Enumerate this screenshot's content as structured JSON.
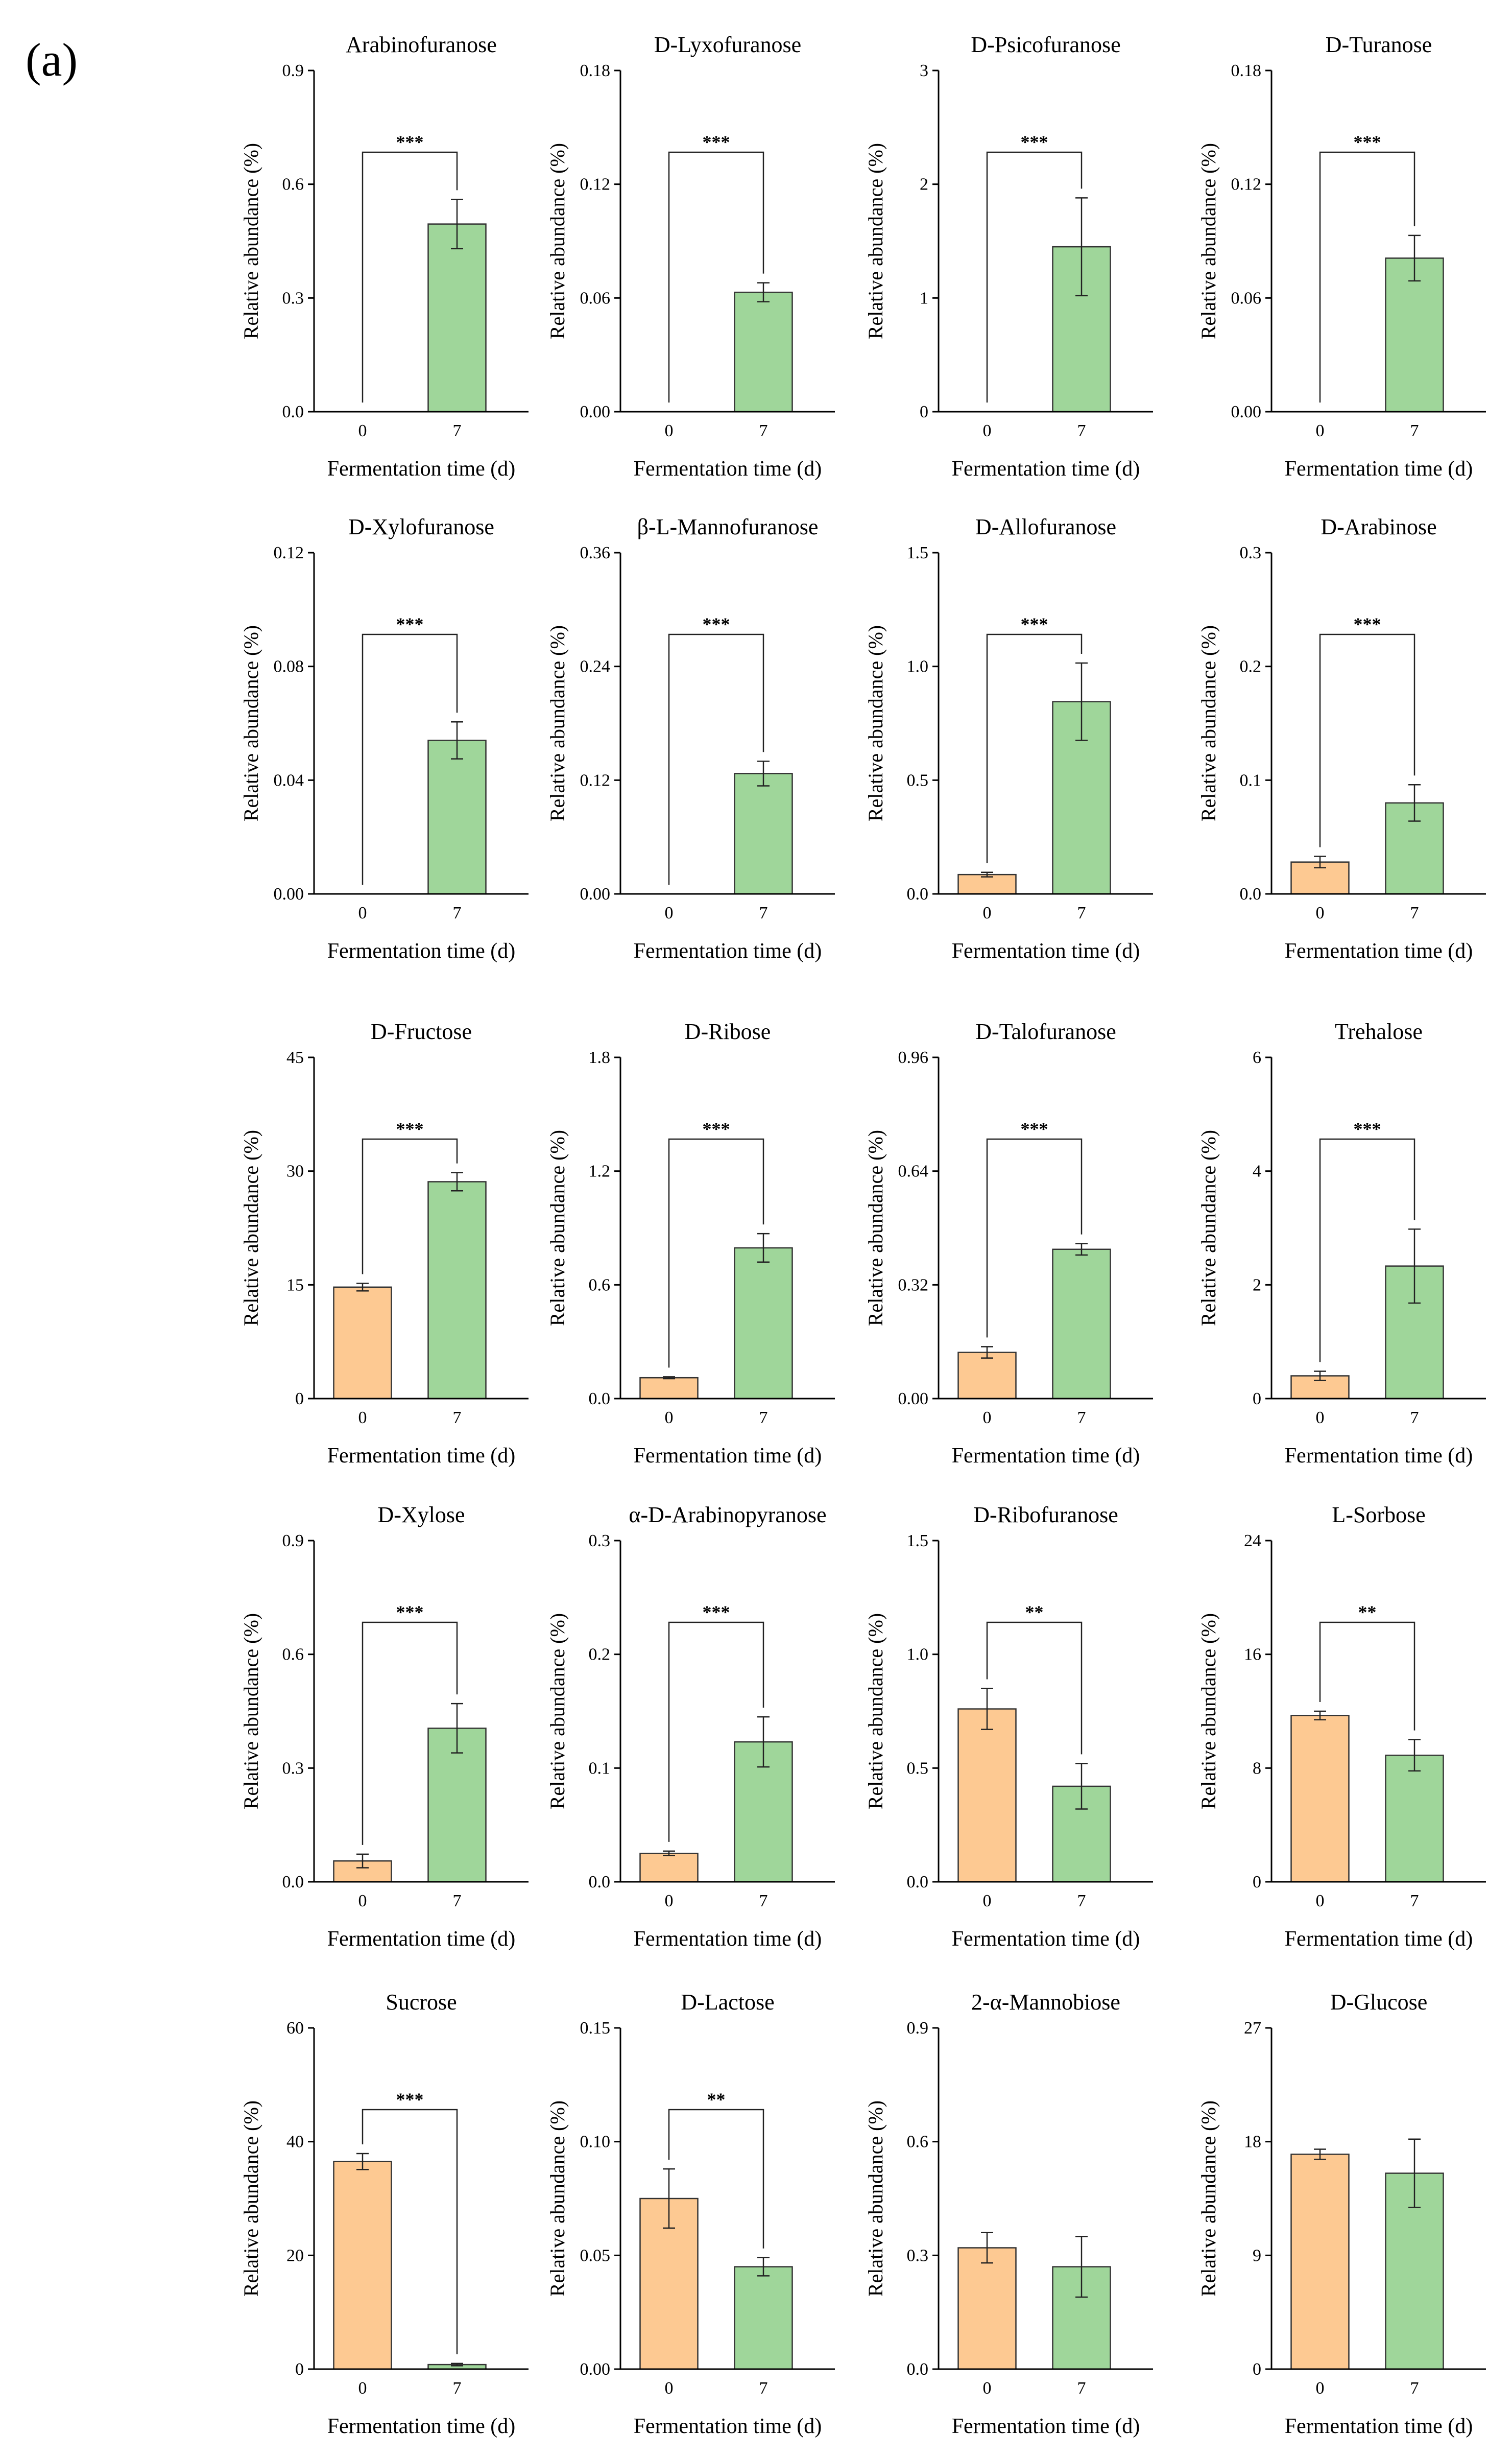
{
  "figure": {
    "panel_label": "(a)",
    "colors": {
      "day0": "#fdc992",
      "day7": "#9fd69a",
      "axis": "#000000"
    }
  },
  "chart_data": [
    {
      "type": "bar",
      "title": "Arabinofuranose",
      "xlabel": "Fermentation time (d)",
      "ylabel": "Relative abundance (%)",
      "categories": [
        "0",
        "7"
      ],
      "values": [
        0,
        0.495
      ],
      "errors": [
        0,
        0.065
      ],
      "ylim": [
        0,
        0.9
      ],
      "yticks": [
        "0.0",
        "0.3",
        "0.6",
        "0.9"
      ],
      "significance": "***"
    },
    {
      "type": "bar",
      "title": "D-Lyxofuranose",
      "xlabel": "Fermentation time (d)",
      "ylabel": "Relative abundance (%)",
      "categories": [
        "0",
        "7"
      ],
      "values": [
        0,
        0.063
      ],
      "errors": [
        0,
        0.005
      ],
      "ylim": [
        0,
        0.18
      ],
      "yticks": [
        "0.00",
        "0.06",
        "0.12",
        "0.18"
      ],
      "significance": "***"
    },
    {
      "type": "bar",
      "title": "D-Psicofuranose",
      "xlabel": "Fermentation time (d)",
      "ylabel": "Relative abundance (%)",
      "categories": [
        "0",
        "7"
      ],
      "values": [
        0,
        1.45
      ],
      "errors": [
        0,
        0.43
      ],
      "ylim": [
        0,
        3
      ],
      "yticks": [
        "0",
        "1",
        "2",
        "3"
      ],
      "significance": "***"
    },
    {
      "type": "bar",
      "title": "D-Turanose",
      "xlabel": "Fermentation time (d)",
      "ylabel": "Relative abundance (%)",
      "categories": [
        "0",
        "7"
      ],
      "values": [
        0,
        0.081
      ],
      "errors": [
        0,
        0.012
      ],
      "ylim": [
        0,
        0.18
      ],
      "yticks": [
        "0.00",
        "0.06",
        "0.12",
        "0.18"
      ],
      "significance": "***"
    },
    {
      "type": "bar",
      "title": "D-Xylofuranose",
      "xlabel": "Fermentation time (d)",
      "ylabel": "Relative abundance (%)",
      "categories": [
        "0",
        "7"
      ],
      "values": [
        0,
        0.054
      ],
      "errors": [
        0,
        0.0065
      ],
      "ylim": [
        0,
        0.12
      ],
      "yticks": [
        "0.00",
        "0.04",
        "0.08",
        "0.12"
      ],
      "significance": "***"
    },
    {
      "type": "bar",
      "title": "β-L-Mannofuranose",
      "xlabel": "Fermentation time (d)",
      "ylabel": "Relative abundance (%)",
      "categories": [
        "0",
        "7"
      ],
      "values": [
        0,
        0.127
      ],
      "errors": [
        0,
        0.013
      ],
      "ylim": [
        0,
        0.36
      ],
      "yticks": [
        "0.00",
        "0.12",
        "0.24",
        "0.36"
      ],
      "significance": "***"
    },
    {
      "type": "bar",
      "title": "D-Allofuranose",
      "xlabel": "Fermentation time (d)",
      "ylabel": "Relative abundance (%)",
      "categories": [
        "0",
        "7"
      ],
      "values": [
        0.085,
        0.845
      ],
      "errors": [
        0.01,
        0.17
      ],
      "ylim": [
        0,
        1.5
      ],
      "yticks": [
        "0.0",
        "0.5",
        "1.0",
        "1.5"
      ],
      "significance": "***"
    },
    {
      "type": "bar",
      "title": "D-Arabinose",
      "xlabel": "Fermentation time (d)",
      "ylabel": "Relative abundance (%)",
      "categories": [
        "0",
        "7"
      ],
      "values": [
        0.028,
        0.08
      ],
      "errors": [
        0.005,
        0.016
      ],
      "ylim": [
        0,
        0.3
      ],
      "yticks": [
        "0.0",
        "0.1",
        "0.2",
        "0.3"
      ],
      "significance": "***"
    },
    {
      "type": "bar",
      "title": "D-Fructose",
      "xlabel": "Fermentation time (d)",
      "ylabel": "Relative abundance (%)",
      "categories": [
        "0",
        "7"
      ],
      "values": [
        14.7,
        28.6
      ],
      "errors": [
        0.5,
        1.2
      ],
      "ylim": [
        0,
        45
      ],
      "yticks": [
        "0",
        "15",
        "30",
        "45"
      ],
      "significance": "***"
    },
    {
      "type": "bar",
      "title": "D-Ribose",
      "xlabel": "Fermentation time (d)",
      "ylabel": "Relative abundance (%)",
      "categories": [
        "0",
        "7"
      ],
      "values": [
        0.11,
        0.795
      ],
      "errors": [
        0.005,
        0.075
      ],
      "ylim": [
        0,
        1.8
      ],
      "yticks": [
        "0.0",
        "0.6",
        "1.2",
        "1.8"
      ],
      "significance": "***"
    },
    {
      "type": "bar",
      "title": "D-Talofuranose",
      "xlabel": "Fermentation time (d)",
      "ylabel": "Relative abundance (%)",
      "categories": [
        "0",
        "7"
      ],
      "values": [
        0.13,
        0.42
      ],
      "errors": [
        0.016,
        0.016
      ],
      "ylim": [
        0,
        0.96
      ],
      "yticks": [
        "0.00",
        "0.32",
        "0.64",
        "0.96"
      ],
      "significance": "***"
    },
    {
      "type": "bar",
      "title": "Trehalose",
      "xlabel": "Fermentation time (d)",
      "ylabel": "Relative abundance (%)",
      "categories": [
        "0",
        "7"
      ],
      "values": [
        0.4,
        2.33
      ],
      "errors": [
        0.08,
        0.65
      ],
      "ylim": [
        0,
        6
      ],
      "yticks": [
        "0",
        "2",
        "4",
        "6"
      ],
      "significance": "***"
    },
    {
      "type": "bar",
      "title": "D-Xylose",
      "xlabel": "Fermentation time (d)",
      "ylabel": "Relative abundance (%)",
      "categories": [
        "0",
        "7"
      ],
      "values": [
        0.055,
        0.405
      ],
      "errors": [
        0.018,
        0.065
      ],
      "ylim": [
        0,
        0.9
      ],
      "yticks": [
        "0.0",
        "0.3",
        "0.6",
        "0.9"
      ],
      "significance": "***"
    },
    {
      "type": "bar",
      "title": "α-D-Arabinopyranose",
      "xlabel": "Fermentation time (d)",
      "ylabel": "Relative abundance (%)",
      "categories": [
        "0",
        "7"
      ],
      "values": [
        0.025,
        0.123
      ],
      "errors": [
        0.002,
        0.022
      ],
      "ylim": [
        0,
        0.3
      ],
      "yticks": [
        "0.0",
        "0.1",
        "0.2",
        "0.3"
      ],
      "significance": "***"
    },
    {
      "type": "bar",
      "title": "D-Ribofuranose",
      "xlabel": "Fermentation time (d)",
      "ylabel": "Relative abundance (%)",
      "categories": [
        "0",
        "7"
      ],
      "values": [
        0.76,
        0.42
      ],
      "errors": [
        0.09,
        0.1
      ],
      "ylim": [
        0,
        1.5
      ],
      "yticks": [
        "0.0",
        "0.5",
        "1.0",
        "1.5"
      ],
      "significance": "**"
    },
    {
      "type": "bar",
      "title": "L-Sorbose",
      "xlabel": "Fermentation time (d)",
      "ylabel": "Relative abundance (%)",
      "categories": [
        "0",
        "7"
      ],
      "values": [
        11.7,
        8.9
      ],
      "errors": [
        0.3,
        1.1
      ],
      "ylim": [
        0,
        24
      ],
      "yticks": [
        "0",
        "8",
        "16",
        "24"
      ],
      "significance": "**"
    },
    {
      "type": "bar",
      "title": "Sucrose",
      "xlabel": "Fermentation time (d)",
      "ylabel": "Relative abundance (%)",
      "categories": [
        "0",
        "7"
      ],
      "values": [
        36.5,
        0.8
      ],
      "errors": [
        1.4,
        0.2
      ],
      "ylim": [
        0,
        60
      ],
      "yticks": [
        "0",
        "20",
        "40",
        "60"
      ],
      "significance": "***"
    },
    {
      "type": "bar",
      "title": "D-Lactose",
      "xlabel": "Fermentation time (d)",
      "ylabel": "Relative abundance (%)",
      "categories": [
        "0",
        "7"
      ],
      "values": [
        0.075,
        0.045
      ],
      "errors": [
        0.013,
        0.004
      ],
      "ylim": [
        0,
        0.15
      ],
      "yticks": [
        "0.00",
        "0.05",
        "0.10",
        "0.15"
      ],
      "significance": "**"
    },
    {
      "type": "bar",
      "title": "2-α-Mannobiose",
      "xlabel": "Fermentation time (d)",
      "ylabel": "Relative abundance (%)",
      "categories": [
        "0",
        "7"
      ],
      "values": [
        0.32,
        0.27
      ],
      "errors": [
        0.04,
        0.08
      ],
      "ylim": [
        0,
        0.9
      ],
      "yticks": [
        "0.0",
        "0.3",
        "0.6",
        "0.9"
      ],
      "significance": ""
    },
    {
      "type": "bar",
      "title": "D-Glucose",
      "xlabel": "Fermentation time (d)",
      "ylabel": "Relative abundance (%)",
      "categories": [
        "0",
        "7"
      ],
      "values": [
        17.0,
        15.5
      ],
      "errors": [
        0.4,
        2.7
      ],
      "ylim": [
        0,
        27
      ],
      "yticks": [
        "0",
        "9",
        "18",
        "27"
      ],
      "significance": ""
    }
  ]
}
